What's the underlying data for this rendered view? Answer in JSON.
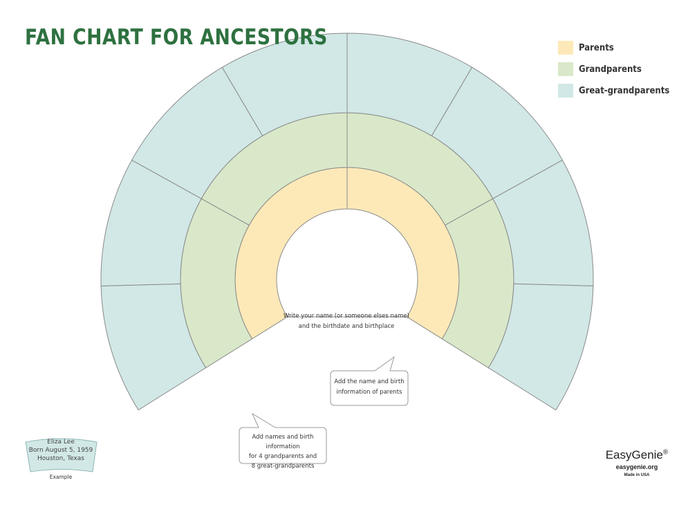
{
  "title": "FAN CHART FOR ANCESTORS",
  "legend": [
    {
      "label": "Parents",
      "color": "#fde9b8"
    },
    {
      "label": "Grandparents",
      "color": "#d9e8c9"
    },
    {
      "label": "Great-grandparents",
      "color": "#d1e8e6"
    }
  ],
  "generations": [
    {
      "name": "Parents",
      "segments": 2,
      "color": "#fde9b8"
    },
    {
      "name": "Grandparents",
      "segments": 4,
      "color": "#d9e8c9"
    },
    {
      "name": "Great-grandparents",
      "segments": 8,
      "color": "#d1e8e6"
    }
  ],
  "callouts": {
    "center_line1": "Write your name (or someone elses name)",
    "center_line2": "and the birthdate and birthplace",
    "parents_line1": "Add the name and birth",
    "parents_line2": "information of parents",
    "grand_line1": "Add names and birth information",
    "grand_line2": "for 4 grandparents and",
    "grand_line3": "8 great-grandparents"
  },
  "example": {
    "name": "Eliza Lee",
    "born": "Born August 5, 1959",
    "place": "Houston, Texas",
    "tag": "Example"
  },
  "brand": {
    "name": "EasyGenie",
    "mark": "®",
    "url": "easygenie.org",
    "made": "Made in USA"
  }
}
